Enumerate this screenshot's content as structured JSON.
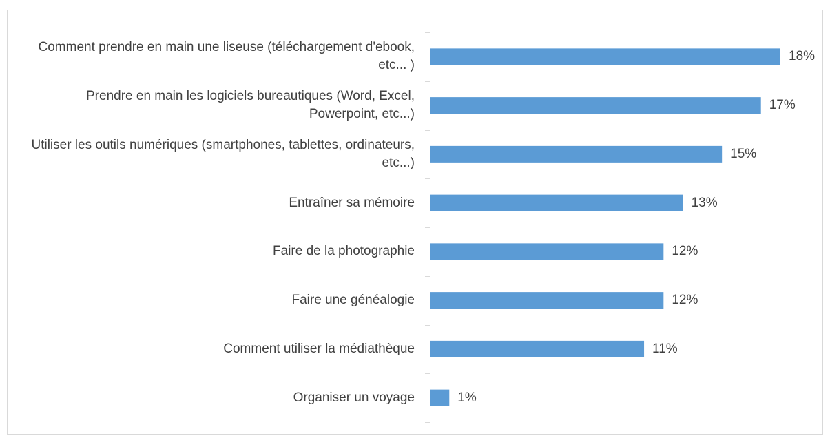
{
  "chart_data": {
    "type": "bar",
    "orientation": "horizontal",
    "categories": [
      "Comment prendre en main une liseuse (téléchargement d'ebook, etc... )",
      "Prendre en main les logiciels bureautiques (Word, Excel, Powerpoint, etc...)",
      "Utiliser les outils numériques (smartphones, tablettes, ordinateurs, etc...)",
      "Entraîner sa mémoire",
      "Faire de la photographie",
      "Faire une généalogie",
      "Comment utiliser la médiathèque",
      "Organiser un voyage"
    ],
    "values": [
      18,
      17,
      15,
      13,
      12,
      12,
      11,
      1
    ],
    "value_labels": [
      "18%",
      "17%",
      "15%",
      "13%",
      "12%",
      "12%",
      "11%",
      "1%"
    ],
    "color": "#5b9bd5"
  }
}
